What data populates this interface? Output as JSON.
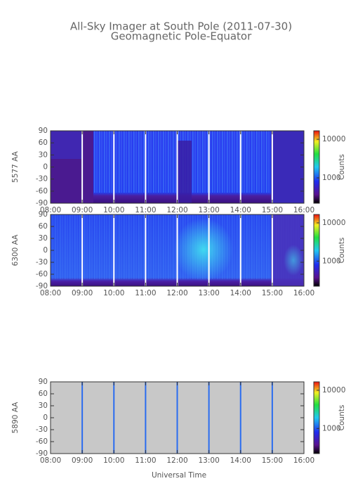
{
  "title": "All-Sky Imager at South Pole (2011-07-30)",
  "subtitle": "Geomagnetic Pole-Equator",
  "xlabel": "Universal Time",
  "chart_data": [
    {
      "type": "heatmap",
      "ylabel": "5577 AA",
      "xlim": [
        8,
        16
      ],
      "xticks": [
        {
          "value": 8,
          "label": "08:00"
        },
        {
          "value": 9,
          "label": "09:00"
        },
        {
          "value": 10,
          "label": "10:00"
        },
        {
          "value": 11,
          "label": "11:00"
        },
        {
          "value": 12,
          "label": "12:00"
        },
        {
          "value": 13,
          "label": "13:00"
        },
        {
          "value": 14,
          "label": "14:00"
        },
        {
          "value": 15,
          "label": "15:00"
        },
        {
          "value": 16,
          "label": "16:00"
        }
      ],
      "ylim": [
        -90,
        90
      ],
      "yticks": [
        -90,
        -60,
        -30,
        0,
        30,
        60,
        90
      ],
      "clim": [
        220,
        16600
      ],
      "clog": true,
      "cticks": [
        1000,
        10000
      ],
      "clabel": "Counts",
      "gap_color": "#ffffff"
    },
    {
      "type": "heatmap",
      "ylabel": "6300 AA",
      "xlim": [
        8,
        16
      ],
      "xticks": [
        {
          "value": 8,
          "label": "08:00"
        },
        {
          "value": 9,
          "label": "09:00"
        },
        {
          "value": 10,
          "label": "10:00"
        },
        {
          "value": 11,
          "label": "11:00"
        },
        {
          "value": 12,
          "label": "12:00"
        },
        {
          "value": 13,
          "label": "13:00"
        },
        {
          "value": 14,
          "label": "14:00"
        },
        {
          "value": 15,
          "label": "15:00"
        },
        {
          "value": 16,
          "label": "16:00"
        }
      ],
      "ylim": [
        -90,
        90
      ],
      "yticks": [
        -90,
        -60,
        -30,
        0,
        30,
        60,
        90
      ],
      "clim": [
        220,
        16600
      ],
      "clog": true,
      "cticks": [
        1000,
        10000
      ],
      "clabel": "Counts",
      "gap_color": "#ffffff"
    },
    {
      "type": "heatmap",
      "ylabel": "5890 AA",
      "xlim": [
        8,
        16
      ],
      "xticks": [
        {
          "value": 8,
          "label": "08:00"
        },
        {
          "value": 9,
          "label": "09:00"
        },
        {
          "value": 10,
          "label": "10:00"
        },
        {
          "value": 11,
          "label": "11:00"
        },
        {
          "value": 12,
          "label": "12:00"
        },
        {
          "value": 13,
          "label": "13:00"
        },
        {
          "value": 14,
          "label": "14:00"
        },
        {
          "value": 15,
          "label": "15:00"
        },
        {
          "value": 16,
          "label": "16:00"
        }
      ],
      "ylim": [
        -90,
        90
      ],
      "yticks": [
        -90,
        -60,
        -30,
        0,
        30,
        60,
        90
      ],
      "clim": [
        220,
        16600
      ],
      "clog": true,
      "cticks": [
        1000,
        10000
      ],
      "clabel": "Counts",
      "gap_color": "#2a6cf0"
    }
  ]
}
